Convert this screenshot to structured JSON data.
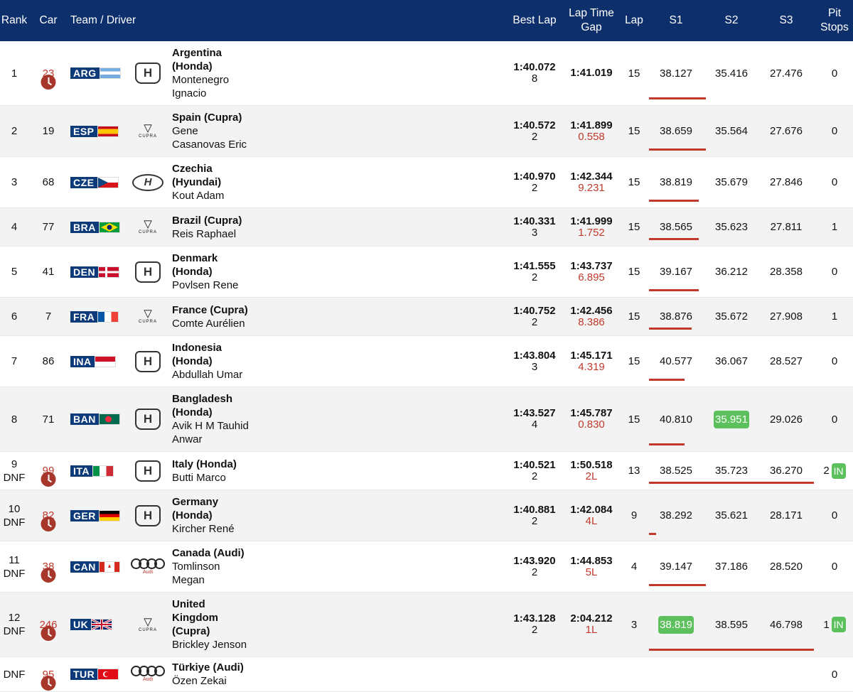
{
  "header": {
    "rank": "Rank",
    "car": "Car",
    "team_driver": "Team / Driver",
    "best_lap": "Best Lap",
    "lap_time_gap_1": "Lap Time",
    "lap_time_gap_2": "Gap",
    "lap": "Lap",
    "s1": "S1",
    "s2": "S2",
    "s3": "S3",
    "pit_1": "Pit",
    "pit_2": "Stops"
  },
  "rows": [
    {
      "rank": "1",
      "rank_status": "",
      "car": "23",
      "car_clock": true,
      "code": "ARG",
      "flag": "arg",
      "logo": "honda-logo",
      "team": "Argentina",
      "team_b2": "(Honda)",
      "team_rest": "",
      "driver_lines": [
        "Montenegro",
        "Ignacio"
      ],
      "best": "1:40.072",
      "best_lap_no": "8",
      "laptime": "1:41.019",
      "gap": "",
      "lap": "15",
      "s1": "38.127",
      "s2": "35.416",
      "s3": "27.476",
      "pit": "0",
      "pit_in": ""
    },
    {
      "rank": "2",
      "rank_status": "",
      "car": "19",
      "car_clock": false,
      "code": "ESP",
      "flag": "esp",
      "logo": "cupra-logo",
      "team": "Spain",
      "team_b2": "",
      "team_rest": " (Cupra)",
      "driver_lines": [
        "Gene",
        "Casanovas Eric"
      ],
      "best": "1:40.572",
      "best_lap_no": "2",
      "laptime": "1:41.899",
      "gap": "0.558",
      "lap": "15",
      "s1": "38.659",
      "s2": "35.564",
      "s3": "27.676",
      "pit": "0",
      "pit_in": ""
    },
    {
      "rank": "3",
      "rank_status": "",
      "car": "68",
      "car_clock": false,
      "code": "CZE",
      "flag": "cze",
      "logo": "hyundai-logo",
      "team": "Czechia",
      "team_b2": "(Hyundai)",
      "team_rest": "",
      "driver_lines": [
        "Kout Adam"
      ],
      "best": "1:40.970",
      "best_lap_no": "2",
      "laptime": "1:42.344",
      "gap": "9.231",
      "lap": "15",
      "s1": "38.819",
      "s2": "35.679",
      "s3": "27.846",
      "pit": "0",
      "pit_in": ""
    },
    {
      "rank": "4",
      "rank_status": "",
      "car": "77",
      "car_clock": false,
      "code": "BRA",
      "flag": "bra",
      "logo": "cupra-logo",
      "team": "Brazil",
      "team_b2": "",
      "team_rest": " (Cupra)",
      "driver_lines": [
        "Reis Raphael"
      ],
      "best": "1:40.331",
      "best_lap_no": "3",
      "laptime": "1:41.999",
      "gap": "1.752",
      "lap": "15",
      "s1": "38.565",
      "s2": "35.623",
      "s3": "27.811",
      "pit": "1",
      "pit_in": ""
    },
    {
      "rank": "5",
      "rank_status": "",
      "car": "41",
      "car_clock": false,
      "code": "DEN",
      "flag": "den",
      "logo": "honda-logo",
      "team": "Denmark",
      "team_b2": "(Honda)",
      "team_rest": "",
      "driver_lines": [
        "Povlsen Rene"
      ],
      "best": "1:41.555",
      "best_lap_no": "2",
      "laptime": "1:43.737",
      "gap": "6.895",
      "lap": "15",
      "s1": "39.167",
      "s2": "36.212",
      "s3": "28.358",
      "pit": "0",
      "pit_in": ""
    },
    {
      "rank": "6",
      "rank_status": "",
      "car": "7",
      "car_clock": false,
      "code": "FRA",
      "flag": "fra",
      "logo": "cupra-logo",
      "team": "France",
      "team_b2": "",
      "team_rest": " (Cupra)",
      "driver_lines": [
        "Comte Aurélien"
      ],
      "best": "1:40.752",
      "best_lap_no": "2",
      "laptime": "1:42.456",
      "gap": "8.386",
      "lap": "15",
      "s1": "38.876",
      "s2": "35.672",
      "s3": "27.908",
      "pit": "1",
      "pit_in": ""
    },
    {
      "rank": "7",
      "rank_status": "",
      "car": "86",
      "car_clock": false,
      "code": "INA",
      "flag": "ina",
      "logo": "honda-logo",
      "team": "Indonesia",
      "team_b2": "(Honda)",
      "team_rest": "",
      "driver_lines": [
        "Abdullah Umar"
      ],
      "best": "1:43.804",
      "best_lap_no": "3",
      "laptime": "1:45.171",
      "gap": "4.319",
      "lap": "15",
      "s1": "40.577",
      "s2": "36.067",
      "s3": "28.527",
      "pit": "0",
      "pit_in": ""
    },
    {
      "rank": "8",
      "rank_status": "",
      "car": "71",
      "car_clock": false,
      "code": "BAN",
      "flag": "ban",
      "logo": "honda-logo",
      "team": "Bangladesh",
      "team_b2": "(Honda)",
      "team_rest": "",
      "driver_lines": [
        "Avik H M Tauhid",
        "Anwar"
      ],
      "best": "1:43.527",
      "best_lap_no": "4",
      "laptime": "1:45.787",
      "gap": "0.830",
      "lap": "15",
      "s1": "40.810",
      "s2": "35.951",
      "s3": "29.026",
      "pit": "0",
      "pit_in": ""
    },
    {
      "rank": "9",
      "rank_status": "DNF",
      "car": "99",
      "car_clock": true,
      "code": "ITA",
      "flag": "ita",
      "logo": "honda-logo",
      "team": "Italy",
      "team_b2": "",
      "team_rest": " (Honda)",
      "driver_lines": [
        "Butti Marco"
      ],
      "best": "1:40.521",
      "best_lap_no": "2",
      "laptime": "1:50.518",
      "gap": "2L",
      "lap": "13",
      "s1": "38.525",
      "s2": "35.723",
      "s3": "36.270",
      "pit": "2",
      "pit_in": "IN"
    },
    {
      "rank": "10",
      "rank_status": "DNF",
      "car": "82",
      "car_clock": true,
      "code": "GER",
      "flag": "ger",
      "logo": "honda-logo",
      "team": "Germany",
      "team_b2": "(Honda)",
      "team_rest": "",
      "driver_lines": [
        "Kircher René"
      ],
      "best": "1:40.881",
      "best_lap_no": "2",
      "laptime": "1:42.084",
      "gap": "4L",
      "lap": "9",
      "s1": "38.292",
      "s2": "35.621",
      "s3": "28.171",
      "pit": "0",
      "pit_in": ""
    },
    {
      "rank": "11",
      "rank_status": "DNF",
      "car": "38",
      "car_clock": true,
      "code": "CAN",
      "flag": "can",
      "logo": "audi-logo",
      "team": "Canada",
      "team_b2": "",
      "team_rest": " (Audi)",
      "driver_lines": [
        "Tomlinson",
        "Megan"
      ],
      "best": "1:43.920",
      "best_lap_no": "2",
      "laptime": "1:44.853",
      "gap": "5L",
      "lap": "4",
      "s1": "39.147",
      "s2": "37.186",
      "s3": "28.520",
      "pit": "0",
      "pit_in": ""
    },
    {
      "rank": "12",
      "rank_status": "DNF",
      "car": "246",
      "car_clock": true,
      "code": "UK",
      "flag": "uk",
      "logo": "cupra-logo",
      "team": "United",
      "team_b2": "Kingdom",
      "team_b3": "(Cupra)",
      "team_rest": "",
      "driver_lines": [
        "Brickley Jenson"
      ],
      "best": "1:43.128",
      "best_lap_no": "2",
      "laptime": "2:04.212",
      "gap": "1L",
      "lap": "3",
      "s1": "38.819",
      "s2": "38.595",
      "s3": "46.798",
      "pit": "1",
      "pit_in": "IN"
    },
    {
      "rank": "",
      "rank_status": "DNF",
      "car": "95",
      "car_clock": true,
      "code": "TUR",
      "flag": "tur",
      "logo": "audi-logo",
      "team": "Türkiye",
      "team_b2": "",
      "team_rest": " (Audi)",
      "driver_lines": [
        "Özen Zekai"
      ],
      "best": "",
      "best_lap_no": "",
      "laptime": "",
      "gap": "",
      "lap": "",
      "s1": "",
      "s2": "",
      "s3": "",
      "pit": "0",
      "pit_in": ""
    }
  ],
  "highlights": {
    "green_color": "#5cc05c",
    "bar_color": "#c0392b",
    "header_color": "#0d2f6b"
  },
  "logo_text": {
    "cupra": "CUPRA",
    "audi": "Audi",
    "honda": "H",
    "hyundai": "H"
  }
}
